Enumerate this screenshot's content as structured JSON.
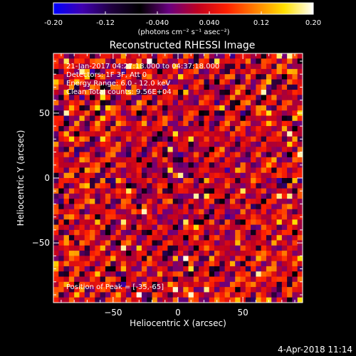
{
  "chart_data": {
    "type": "heatmap",
    "title": "Reconstructed RHESSI Image",
    "xlabel": "Heliocentric X (arcsec)",
    "ylabel": "Heliocentric Y (arcsec)",
    "xlim": [
      -96,
      96
    ],
    "ylim": [
      -96,
      96
    ],
    "xticks": [
      -50,
      0,
      50
    ],
    "yticks": [
      -50,
      0,
      50
    ],
    "colorbar": {
      "range": [
        -0.2,
        0.2
      ],
      "tick_labels": [
        "-0.20",
        "-0.12",
        "-0.040",
        "0.040",
        "0.12",
        "0.20"
      ],
      "tick_values": [
        -0.2,
        -0.12,
        -0.04,
        0.04,
        0.12,
        0.2
      ],
      "unit_label": "(photons cm⁻² s⁻¹ asec⁻²)",
      "colormap": [
        "#0000ff",
        "#4000b0",
        "#200040",
        "#000000",
        "#6a0080",
        "#c00020",
        "#ff2000",
        "#ff8000",
        "#ffe000",
        "#ffffff"
      ]
    },
    "grid_cells": 48,
    "peak_position": [
      -35,
      -65
    ],
    "annotations": {
      "time_range": "21-Jan-2017 04:27:18.000 to 04:37:18.000",
      "detectors": "Detectors: 1F 3F, Att 0",
      "energy_range": "Energy Range: 6.0 - 12.0 keV",
      "method": "Clean     Total counts: 9.56E+04",
      "peak": "Position of Peak = [-35,-65]"
    }
  },
  "footer": {
    "timestamp": "4-Apr-2018 11:14"
  }
}
